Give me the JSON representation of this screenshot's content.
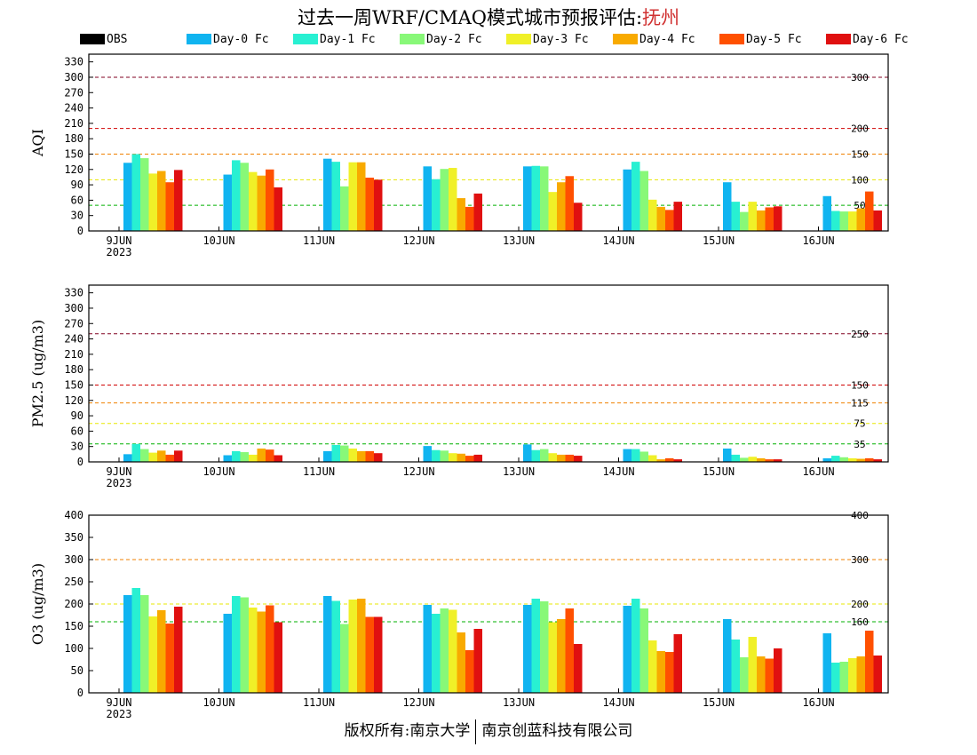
{
  "title": {
    "prefix": "过去一周WRF/CMAQ模式城市预报评估:",
    "city": "抚州"
  },
  "legend": [
    {
      "label": "OBS",
      "color": "#000000"
    },
    {
      "label": "Day-0 Fc",
      "color": "#10b4f0"
    },
    {
      "label": "Day-1 Fc",
      "color": "#28f0d2"
    },
    {
      "label": "Day-2 Fc",
      "color": "#88f878"
    },
    {
      "label": "Day-3 Fc",
      "color": "#f0f028"
    },
    {
      "label": "Day-4 Fc",
      "color": "#f8aa00"
    },
    {
      "label": "Day-5 Fc",
      "color": "#ff5000"
    },
    {
      "label": "Day-6 Fc",
      "color": "#e01010"
    }
  ],
  "footer": {
    "left": "版权所有:南京大学",
    "right": "南京创蓝科技有限公司"
  },
  "chart_data": [
    {
      "type": "bar",
      "ylabel": "AQI",
      "ylim": [
        0,
        345
      ],
      "yticks": [
        0,
        30,
        60,
        90,
        120,
        150,
        180,
        210,
        240,
        270,
        300,
        330
      ],
      "categories": [
        "9JUN",
        "10JUN",
        "11JUN",
        "12JUN",
        "13JUN",
        "14JUN",
        "15JUN",
        "16JUN"
      ],
      "year_label": "2023",
      "thresholds": [
        {
          "value": 50,
          "label": "50",
          "color": "#00b000"
        },
        {
          "value": 100,
          "label": "100",
          "color": "#e8e800"
        },
        {
          "value": 150,
          "label": "150",
          "color": "#f08000"
        },
        {
          "value": 200,
          "label": "200",
          "color": "#d00000"
        },
        {
          "value": 300,
          "label": "300",
          "color": "#800020"
        }
      ],
      "series": [
        {
          "name": "OBS",
          "values": [
            null,
            null,
            null,
            null,
            null,
            null,
            null,
            null
          ]
        },
        {
          "name": "Day-0 Fc",
          "values": [
            133,
            110,
            141,
            126,
            126,
            120,
            95,
            68
          ]
        },
        {
          "name": "Day-1 Fc",
          "values": [
            150,
            138,
            135,
            101,
            127,
            135,
            57,
            39
          ]
        },
        {
          "name": "Day-2 Fc",
          "values": [
            142,
            133,
            87,
            121,
            126,
            117,
            37,
            38
          ]
        },
        {
          "name": "Day-3 Fc",
          "values": [
            112,
            115,
            134,
            123,
            76,
            61,
            57,
            38
          ]
        },
        {
          "name": "Day-4 Fc",
          "values": [
            117,
            108,
            134,
            64,
            95,
            47,
            40,
            44
          ]
        },
        {
          "name": "Day-5 Fc",
          "values": [
            95,
            120,
            104,
            47,
            107,
            41,
            46,
            77
          ]
        },
        {
          "name": "Day-6 Fc",
          "values": [
            119,
            85,
            100,
            73,
            55,
            57,
            48,
            40
          ]
        }
      ]
    },
    {
      "type": "bar",
      "ylabel": "PM2.5 (ug/m3)",
      "ylim": [
        0,
        345
      ],
      "yticks": [
        0,
        30,
        60,
        90,
        120,
        150,
        180,
        210,
        240,
        270,
        300,
        330
      ],
      "categories": [
        "9JUN",
        "10JUN",
        "11JUN",
        "12JUN",
        "13JUN",
        "14JUN",
        "15JUN",
        "16JUN"
      ],
      "year_label": "2023",
      "thresholds": [
        {
          "value": 35,
          "label": "35",
          "color": "#00b000"
        },
        {
          "value": 75,
          "label": "75",
          "color": "#e8e800"
        },
        {
          "value": 115,
          "label": "115",
          "color": "#f08000"
        },
        {
          "value": 150,
          "label": "150",
          "color": "#d00000"
        },
        {
          "value": 250,
          "label": "250",
          "color": "#800020"
        }
      ],
      "series": [
        {
          "name": "OBS",
          "values": [
            null,
            null,
            null,
            null,
            null,
            null,
            null,
            null
          ]
        },
        {
          "name": "Day-0 Fc",
          "values": [
            15,
            13,
            21,
            31,
            34,
            25,
            26,
            7
          ]
        },
        {
          "name": "Day-1 Fc",
          "values": [
            35,
            21,
            33,
            23,
            23,
            25,
            14,
            12
          ]
        },
        {
          "name": "Day-2 Fc",
          "values": [
            25,
            19,
            32,
            22,
            25,
            20,
            8,
            9
          ]
        },
        {
          "name": "Day-3 Fc",
          "values": [
            18,
            14,
            26,
            17,
            17,
            13,
            10,
            7
          ]
        },
        {
          "name": "Day-4 Fc",
          "values": [
            22,
            26,
            21,
            16,
            14,
            5,
            7,
            6
          ]
        },
        {
          "name": "Day-5 Fc",
          "values": [
            14,
            24,
            21,
            12,
            14,
            7,
            5,
            7
          ]
        },
        {
          "name": "Day-6 Fc",
          "values": [
            22,
            13,
            17,
            14,
            12,
            5,
            5,
            5
          ]
        }
      ]
    },
    {
      "type": "bar",
      "ylabel": "O3 (ug/m3)",
      "ylim": [
        0,
        400
      ],
      "yticks": [
        0,
        50,
        100,
        150,
        200,
        250,
        300,
        350,
        400
      ],
      "categories": [
        "9JUN",
        "10JUN",
        "11JUN",
        "12JUN",
        "13JUN",
        "14JUN",
        "15JUN",
        "16JUN"
      ],
      "year_label": "2023",
      "thresholds": [
        {
          "value": 160,
          "label": "160",
          "color": "#00b000"
        },
        {
          "value": 200,
          "label": "200",
          "color": "#e8e800"
        },
        {
          "value": 300,
          "label": "300",
          "color": "#f08000"
        },
        {
          "value": 400,
          "label": "400",
          "color": "#d00000"
        }
      ],
      "series": [
        {
          "name": "OBS",
          "values": [
            null,
            null,
            null,
            null,
            null,
            null,
            null,
            null
          ]
        },
        {
          "name": "Day-0 Fc",
          "values": [
            220,
            178,
            218,
            198,
            198,
            196,
            166,
            134
          ]
        },
        {
          "name": "Day-1 Fc",
          "values": [
            236,
            218,
            207,
            178,
            212,
            212,
            120,
            68
          ]
        },
        {
          "name": "Day-2 Fc",
          "values": [
            220,
            215,
            155,
            190,
            206,
            190,
            80,
            70
          ]
        },
        {
          "name": "Day-3 Fc",
          "values": [
            172,
            192,
            210,
            187,
            159,
            118,
            126,
            78
          ]
        },
        {
          "name": "Day-4 Fc",
          "values": [
            186,
            183,
            212,
            136,
            166,
            94,
            82,
            82
          ]
        },
        {
          "name": "Day-5 Fc",
          "values": [
            156,
            197,
            171,
            96,
            190,
            92,
            77,
            140
          ]
        },
        {
          "name": "Day-6 Fc",
          "values": [
            194,
            159,
            171,
            144,
            110,
            132,
            100,
            84
          ]
        }
      ]
    }
  ]
}
